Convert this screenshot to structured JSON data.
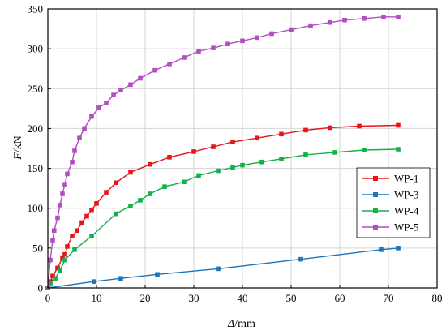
{
  "chart_data": {
    "type": "line",
    "xlabel_italic": "Δ",
    "xlabel_unit": "/mm",
    "ylabel_italic": "F",
    "ylabel_unit": "/kN",
    "xlim": [
      0,
      80
    ],
    "ylim": [
      0,
      350
    ],
    "xticks": [
      "0",
      "10",
      "20",
      "30",
      "40",
      "50",
      "60",
      "70",
      "80"
    ],
    "yticks": [
      "0",
      "50",
      "100",
      "150",
      "200",
      "250",
      "300",
      "350"
    ],
    "grid": true,
    "legend_position": "right",
    "series": [
      {
        "name": "WP-1",
        "color": "#e8141c",
        "points": [
          [
            0,
            0
          ],
          [
            0.5,
            8
          ],
          [
            1,
            15
          ],
          [
            2,
            25
          ],
          [
            3,
            38
          ],
          [
            3.5,
            42
          ],
          [
            4,
            52
          ],
          [
            5,
            65
          ],
          [
            6,
            72
          ],
          [
            7,
            82
          ],
          [
            8,
            90
          ],
          [
            9,
            98
          ],
          [
            10,
            106
          ],
          [
            12,
            120
          ],
          [
            14,
            132
          ],
          [
            17,
            145
          ],
          [
            21,
            155
          ],
          [
            25,
            164
          ],
          [
            30,
            171
          ],
          [
            34,
            177
          ],
          [
            38,
            183
          ],
          [
            43,
            188
          ],
          [
            48,
            193
          ],
          [
            53,
            198
          ],
          [
            58,
            201
          ],
          [
            64,
            203
          ],
          [
            72,
            204
          ]
        ]
      },
      {
        "name": "WP-3",
        "color": "#1f73b8",
        "points": [
          [
            0,
            0
          ],
          [
            9.5,
            8
          ],
          [
            15,
            12
          ],
          [
            22.5,
            17
          ],
          [
            35,
            24
          ],
          [
            52,
            36
          ],
          [
            68.5,
            48
          ],
          [
            72,
            50
          ]
        ]
      },
      {
        "name": "WP-4",
        "color": "#15b04a",
        "points": [
          [
            0,
            0
          ],
          [
            0.5,
            6
          ],
          [
            1.5,
            12
          ],
          [
            2.5,
            22
          ],
          [
            3.5,
            35
          ],
          [
            5.5,
            48
          ],
          [
            9,
            65
          ],
          [
            14,
            93
          ],
          [
            17,
            103
          ],
          [
            19,
            110
          ],
          [
            21,
            118
          ],
          [
            24,
            127
          ],
          [
            28,
            133
          ],
          [
            31,
            141
          ],
          [
            35,
            147
          ],
          [
            38,
            151
          ],
          [
            40,
            154
          ],
          [
            44,
            158
          ],
          [
            48,
            162
          ],
          [
            53,
            167
          ],
          [
            59,
            170
          ],
          [
            65,
            173
          ],
          [
            72,
            174
          ]
        ]
      },
      {
        "name": "WP-5",
        "color": "#b14fc1",
        "points": [
          [
            0,
            0
          ],
          [
            0.5,
            35
          ],
          [
            1,
            60
          ],
          [
            1.3,
            72
          ],
          [
            2,
            88
          ],
          [
            2.5,
            104
          ],
          [
            3,
            118
          ],
          [
            3.5,
            130
          ],
          [
            4,
            143
          ],
          [
            5,
            158
          ],
          [
            5.5,
            172
          ],
          [
            6.5,
            188
          ],
          [
            7.5,
            200
          ],
          [
            9,
            215
          ],
          [
            10.5,
            226
          ],
          [
            12,
            232
          ],
          [
            13.5,
            242
          ],
          [
            15,
            248
          ],
          [
            17,
            255
          ],
          [
            19,
            263
          ],
          [
            22,
            273
          ],
          [
            25,
            281
          ],
          [
            28,
            289
          ],
          [
            31,
            297
          ],
          [
            34,
            301
          ],
          [
            37,
            306
          ],
          [
            40,
            310
          ],
          [
            43,
            314
          ],
          [
            46,
            319
          ],
          [
            50,
            324
          ],
          [
            54,
            329
          ],
          [
            58,
            333
          ],
          [
            61,
            336
          ],
          [
            65,
            338
          ],
          [
            69,
            340
          ],
          [
            72,
            340
          ]
        ]
      }
    ]
  }
}
